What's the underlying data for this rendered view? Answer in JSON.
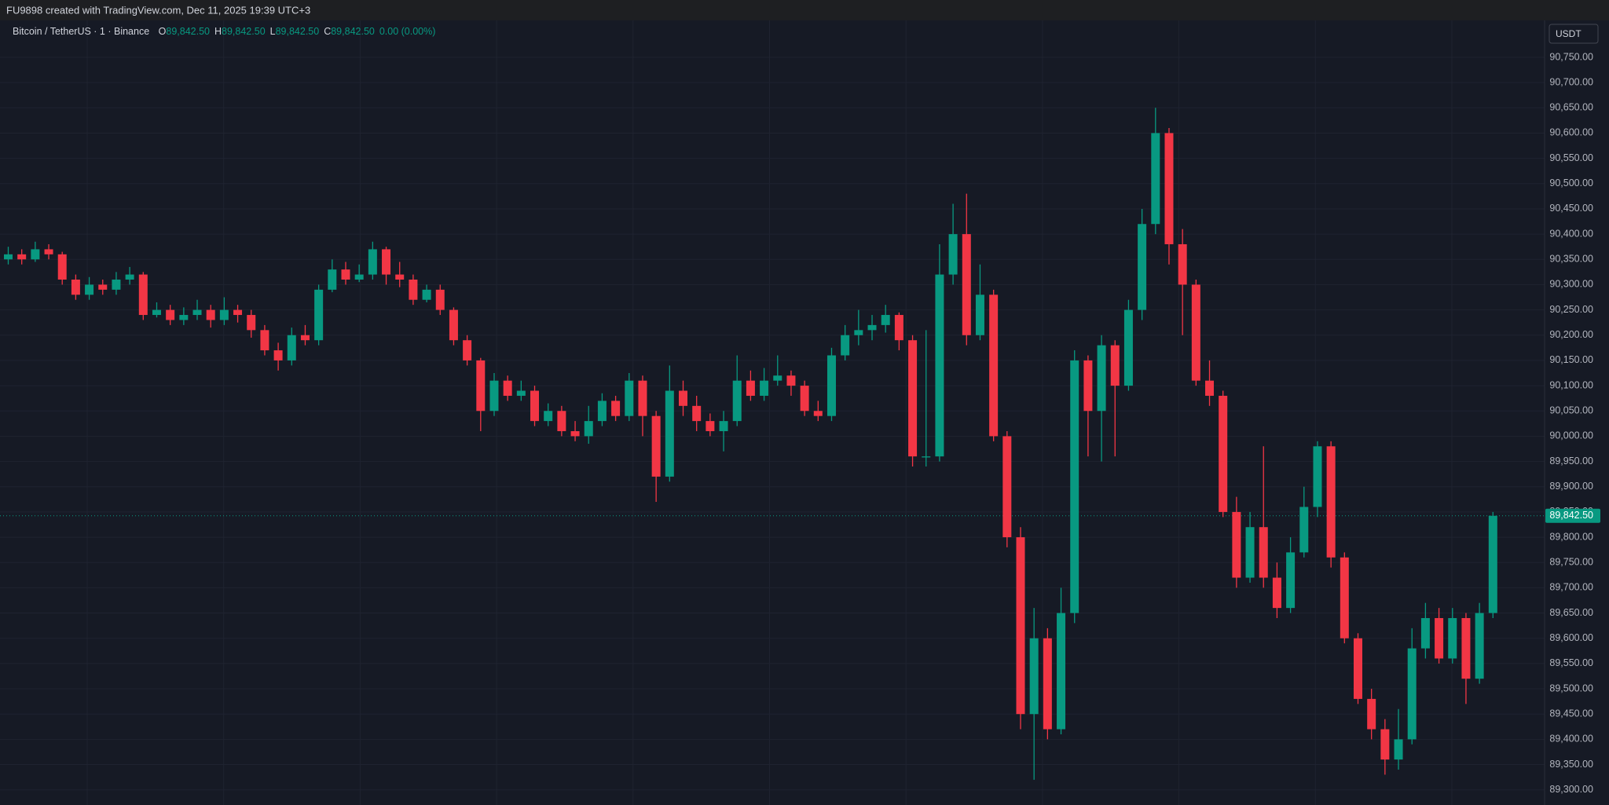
{
  "header": {
    "text": "FU9898 created with TradingView.com, Dec 11, 2025 19:39 UTC+3"
  },
  "chart_data": {
    "type": "candlestick",
    "legend": {
      "symbol": "Bitcoin / TetherUS · 1 · Binance",
      "fields": [
        {
          "label": "O",
          "value": "89,842.50"
        },
        {
          "label": "H",
          "value": "89,842.50"
        },
        {
          "label": "L",
          "value": "89,842.50"
        },
        {
          "label": "C",
          "value": "89,842.50"
        }
      ],
      "change": "0.00 (0.00%)"
    },
    "currency": "USDT",
    "up_color": "#089981",
    "down_color": "#f23645",
    "last_price": 89842.5,
    "last_price_label": "89,842.50",
    "grid": true,
    "ylim": [
      89270,
      90823
    ],
    "yticks": [
      {
        "value": 89300,
        "label": "89,300.00"
      },
      {
        "value": 89350,
        "label": "89,350.00"
      },
      {
        "value": 89400,
        "label": "89,400.00"
      },
      {
        "value": 89450,
        "label": "89,450.00"
      },
      {
        "value": 89500,
        "label": "89,500.00"
      },
      {
        "value": 89550,
        "label": "89,550.00"
      },
      {
        "value": 89600,
        "label": "89,600.00"
      },
      {
        "value": 89650,
        "label": "89,650.00"
      },
      {
        "value": 89700,
        "label": "89,700.00"
      },
      {
        "value": 89750,
        "label": "89,750.00"
      },
      {
        "value": 89800,
        "label": "89,800.00"
      },
      {
        "value": 89850,
        "label": "89,850.00"
      },
      {
        "value": 89900,
        "label": "89,900.00"
      },
      {
        "value": 89950,
        "label": "89,950.00"
      },
      {
        "value": 90000,
        "label": "90,000.00"
      },
      {
        "value": 90050,
        "label": "90,050.00"
      },
      {
        "value": 90100,
        "label": "90,100.00"
      },
      {
        "value": 90150,
        "label": "90,150.00"
      },
      {
        "value": 90200,
        "label": "90,200.00"
      },
      {
        "value": 90250,
        "label": "90,250.00"
      },
      {
        "value": 90300,
        "label": "90,300.00"
      },
      {
        "value": 90350,
        "label": "90,350.00"
      },
      {
        "value": 90400,
        "label": "90,400.00"
      },
      {
        "value": 90450,
        "label": "90,450.00"
      },
      {
        "value": 90500,
        "label": "90,500.00"
      },
      {
        "value": 90550,
        "label": "90,550.00"
      },
      {
        "value": 90600,
        "label": "90,600.00"
      },
      {
        "value": 90650,
        "label": "90,650.00"
      },
      {
        "value": 90700,
        "label": "90,700.00"
      },
      {
        "value": 90750,
        "label": "90,750.00"
      }
    ],
    "open": [
      90350,
      90360,
      90350,
      90370,
      90360,
      90310,
      90280,
      90300,
      90290,
      90310,
      90320,
      90240,
      90250,
      90230,
      90240,
      90250,
      90230,
      90250,
      90240,
      90210,
      90170,
      90150,
      90200,
      90190,
      90290,
      90330,
      90310,
      90320,
      90370,
      90320,
      90310,
      90270,
      90290,
      90250,
      90190,
      90150,
      90050,
      90110,
      90080,
      90090,
      90030,
      90050,
      90010,
      90000,
      90030,
      90070,
      90040,
      90110,
      90040,
      89920,
      90090,
      90060,
      90030,
      90010,
      90030,
      90110,
      90080,
      90110,
      90120,
      90100,
      90050,
      90040,
      90160,
      90200,
      90210,
      90220,
      90240,
      90190,
      89960,
      89960,
      90320,
      90400,
      90200,
      90280,
      90000,
      89800,
      89450,
      89600,
      89420,
      89650,
      90150,
      90050,
      90180,
      90100,
      90250,
      90420,
      90600,
      90380,
      90300,
      90110,
      90080,
      89850,
      89720,
      89820,
      89720,
      89660,
      89770,
      89860,
      89980,
      89760,
      89600,
      89480,
      89420,
      89360,
      89400,
      89580,
      89640,
      89560,
      89640,
      89520,
      89650
    ],
    "high": [
      90375,
      90370,
      90385,
      90380,
      90365,
      90320,
      90315,
      90310,
      90325,
      90335,
      90325,
      90265,
      90260,
      90255,
      90270,
      90260,
      90275,
      90260,
      90250,
      90220,
      90185,
      90215,
      90220,
      90300,
      90350,
      90345,
      90340,
      90385,
      90375,
      90345,
      90320,
      90300,
      90300,
      90255,
      90200,
      90155,
      90125,
      90120,
      90110,
      90100,
      90065,
      90060,
      90030,
      90060,
      90085,
      90080,
      90125,
      90120,
      90050,
      90140,
      90110,
      90080,
      90045,
      90050,
      90160,
      90130,
      90135,
      90160,
      90130,
      90110,
      90070,
      90175,
      90220,
      90250,
      90240,
      90260,
      90245,
      90200,
      90210,
      90380,
      90460,
      90480,
      90340,
      90290,
      90010,
      89820,
      89660,
      89620,
      89700,
      90170,
      90160,
      90200,
      90190,
      90270,
      90450,
      90650,
      90610,
      90410,
      90310,
      90150,
      90090,
      89880,
      89850,
      89980,
      89750,
      89800,
      89900,
      89990,
      89990,
      89770,
      89610,
      89500,
      89440,
      89460,
      89620,
      89670,
      89660,
      89660,
      89650,
      89670,
      89850
    ],
    "low": [
      90340,
      90340,
      90345,
      90350,
      90300,
      90270,
      90270,
      90280,
      90280,
      90300,
      90230,
      90235,
      90220,
      90220,
      90230,
      90215,
      90220,
      90225,
      90195,
      90160,
      90130,
      90140,
      90180,
      90180,
      90285,
      90300,
      90305,
      90310,
      90300,
      90295,
      90260,
      90265,
      90240,
      90180,
      90140,
      90010,
      90040,
      90070,
      90070,
      90020,
      90020,
      90000,
      89990,
      89985,
      90020,
      90030,
      90030,
      90000,
      89870,
      89910,
      90040,
      90010,
      90000,
      89970,
      90020,
      90070,
      90070,
      90100,
      90080,
      90040,
      90030,
      90030,
      90150,
      90180,
      90190,
      90205,
      90170,
      89940,
      89940,
      89950,
      90300,
      90180,
      90190,
      89990,
      89780,
      89420,
      89320,
      89400,
      89410,
      89630,
      89960,
      89950,
      89960,
      90090,
      90230,
      90400,
      90340,
      90200,
      90100,
      90060,
      89840,
      89700,
      89710,
      89700,
      89640,
      89650,
      89760,
      89840,
      89740,
      89590,
      89470,
      89400,
      89330,
      89340,
      89390,
      89560,
      89550,
      89550,
      89470,
      89510,
      89640
    ],
    "close": [
      90360,
      90350,
      90370,
      90360,
      90310,
      90280,
      90300,
      90290,
      90310,
      90320,
      90240,
      90250,
      90230,
      90240,
      90250,
      90230,
      90250,
      90240,
      90210,
      90170,
      90150,
      90200,
      90190,
      90290,
      90330,
      90310,
      90320,
      90370,
      90320,
      90310,
      90270,
      90290,
      90250,
      90190,
      90150,
      90050,
      90110,
      90080,
      90090,
      90030,
      90050,
      90010,
      90000,
      90030,
      90070,
      90040,
      90110,
      90040,
      89920,
      90090,
      90060,
      90030,
      90010,
      90030,
      90110,
      90080,
      90110,
      90120,
      90100,
      90050,
      90040,
      90160,
      90200,
      90210,
      90220,
      90240,
      90190,
      89960,
      89960,
      90320,
      90400,
      90200,
      90280,
      90000,
      89800,
      89450,
      89600,
      89420,
      89650,
      90150,
      90050,
      90180,
      90100,
      90250,
      90420,
      90600,
      90380,
      90300,
      90110,
      90080,
      89850,
      89720,
      89820,
      89720,
      89660,
      89770,
      89860,
      89980,
      89760,
      89600,
      89480,
      89420,
      89360,
      89400,
      89580,
      89640,
      89560,
      89640,
      89520,
      89650,
      89842.5
    ]
  }
}
